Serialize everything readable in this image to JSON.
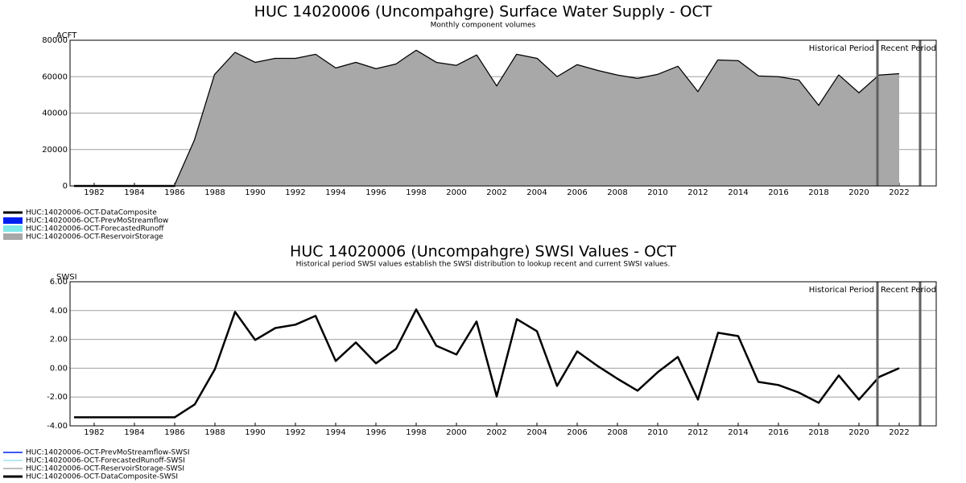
{
  "chart_data": [
    {
      "type": "line",
      "title": "HUC 14020006 (Uncompahgre) Surface Water Supply - OCT",
      "subtitle": "Monthly component volumes",
      "ylabel": "ACFT",
      "x": [
        1981,
        1982,
        1983,
        1984,
        1985,
        1986,
        1987,
        1988,
        1989,
        1990,
        1991,
        1992,
        1993,
        1994,
        1995,
        1996,
        1997,
        1998,
        1999,
        2000,
        2001,
        2002,
        2003,
        2004,
        2005,
        2006,
        2007,
        2008,
        2009,
        2010,
        2011,
        2012,
        2013,
        2014,
        2015,
        2016,
        2017,
        2018,
        2019,
        2020,
        2021,
        2022
      ],
      "series": [
        {
          "name": "HUC:14020006-OCT-DataComposite",
          "color": "#000000",
          "values": [
            0,
            0,
            0,
            0,
            0,
            0,
            25000,
            61000,
            73000,
            67600,
            69800,
            69800,
            72000,
            64500,
            67600,
            64100,
            66700,
            74200,
            67600,
            65900,
            71600,
            54400,
            72000,
            69800,
            59700,
            66300,
            63200,
            60600,
            58800,
            61000,
            65400,
            51300,
            68900,
            68500,
            60100,
            59700,
            57900,
            43800,
            60600,
            50800,
            60600,
            61400
          ]
        },
        {
          "name": "HUC:14020006-OCT-PrevMoStreamflow",
          "color": "#0020f0",
          "fill": true
        },
        {
          "name": "HUC:14020006-OCT-ForecastedRunoff",
          "color": "#80e8e8",
          "fill": true
        },
        {
          "name": "HUC:14020006-OCT-ReservoirStorage",
          "color": "#a8a8a8",
          "fill": true,
          "values": [
            0,
            0,
            0,
            0,
            0,
            0,
            25000,
            61000,
            73000,
            67600,
            69800,
            69800,
            72000,
            64500,
            67600,
            64100,
            66700,
            74200,
            67600,
            65900,
            71600,
            54400,
            72000,
            69800,
            59700,
            66300,
            63200,
            60600,
            58800,
            61000,
            65400,
            51300,
            68900,
            68500,
            60100,
            59700,
            57900,
            43800,
            60600,
            50800,
            60600,
            61400
          ]
        }
      ],
      "xlim": [
        1980.8,
        2023.84
      ],
      "xticks": [
        1982,
        1984,
        1986,
        1988,
        1990,
        1992,
        1994,
        1996,
        1998,
        2000,
        2002,
        2004,
        2006,
        2008,
        2010,
        2012,
        2014,
        2016,
        2018,
        2020,
        2022
      ],
      "ylim": [
        0,
        80000
      ],
      "yticks": [
        0,
        20000,
        40000,
        60000,
        80000
      ],
      "grid": true,
      "period_lines": [
        2020.92,
        2023.04
      ],
      "annotations": [
        "Historical Period",
        "Recent Period"
      ]
    },
    {
      "type": "line",
      "title": "HUC 14020006 (Uncompahgre) SWSI Values - OCT",
      "subtitle": "Historical period SWSI values establish the SWSI distribution to lookup recent and current SWSI values.",
      "ylabel": "SWSI",
      "x": [
        1981,
        1982,
        1983,
        1984,
        1985,
        1986,
        1987,
        1988,
        1989,
        1990,
        1991,
        1992,
        1993,
        1994,
        1995,
        1996,
        1997,
        1998,
        1999,
        2000,
        2001,
        2002,
        2003,
        2004,
        2005,
        2006,
        2007,
        2008,
        2009,
        2010,
        2011,
        2012,
        2013,
        2014,
        2015,
        2016,
        2017,
        2018,
        2019,
        2020,
        2021,
        2022
      ],
      "series": [
        {
          "name": "HUC:14020006-OCT-PrevMoStreamflow-SWSI",
          "color": "#0020f0"
        },
        {
          "name": "HUC:14020006-OCT-ForecastedRunoff-SWSI",
          "color": "#a0e0f0"
        },
        {
          "name": "HUC:14020006-OCT-ReservoirStorage-SWSI",
          "color": "#a8a8a8"
        },
        {
          "name": "HUC:14020006-OCT-DataComposite-SWSI",
          "color": "#000000",
          "values": [
            -3.41,
            -3.41,
            -3.41,
            -3.41,
            -3.41,
            -3.41,
            -2.51,
            -0.06,
            3.91,
            1.96,
            2.79,
            3.02,
            3.63,
            0.5,
            1.79,
            0.34,
            1.34,
            4.08,
            1.56,
            0.95,
            3.24,
            -1.96,
            3.41,
            2.57,
            -1.23,
            1.17,
            0.17,
            -0.73,
            -1.56,
            -0.28,
            0.78,
            -2.18,
            2.46,
            2.23,
            -0.95,
            -1.17,
            -1.68,
            -2.4,
            -0.5,
            -2.18,
            -0.61,
            0
          ]
        }
      ],
      "xlim": [
        1980.8,
        2023.84
      ],
      "xticks": [
        1982,
        1984,
        1986,
        1988,
        1990,
        1992,
        1994,
        1996,
        1998,
        2000,
        2002,
        2004,
        2006,
        2008,
        2010,
        2012,
        2014,
        2016,
        2018,
        2020,
        2022
      ],
      "ylim": [
        -4,
        6
      ],
      "yticks": [
        {
          "value": -4,
          "label": "-4.00"
        },
        {
          "value": -2,
          "label": "-2.00"
        },
        {
          "value": 0,
          "label": "0.00"
        },
        {
          "value": 2,
          "label": "2.00"
        },
        {
          "value": 4,
          "label": "4.00"
        },
        {
          "value": 6,
          "label": "6.00"
        }
      ],
      "grid": true,
      "period_lines": [
        2020.92,
        2023.04
      ],
      "annotations": [
        "Historical Period",
        "Recent Period"
      ]
    }
  ]
}
